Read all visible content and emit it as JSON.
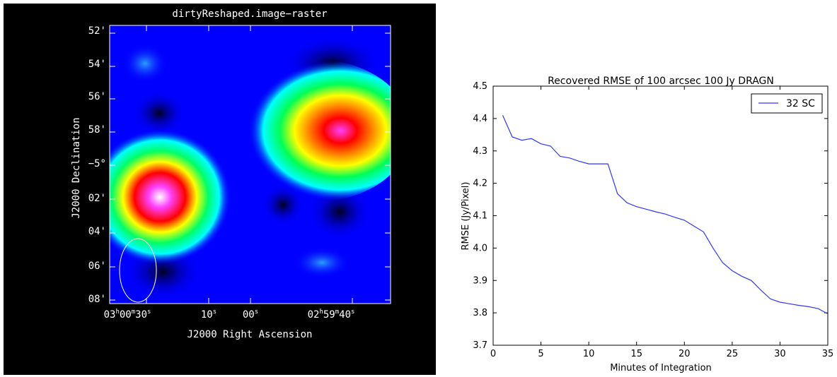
{
  "left_panel": {
    "title": "dirtyReshaped.image−raster",
    "xlabel": "J2000 Right Ascension",
    "ylabel": "J2000 Declination",
    "dec_ticks": [
      "52'",
      "54'",
      "56'",
      "58'",
      "−5°",
      "02'",
      "04'",
      "06'",
      "08'"
    ],
    "ra_ticks": [
      {
        "main": "03",
        "h": "h",
        "mid": "00",
        "m": "m",
        "sec": "30",
        "s": "s"
      },
      {
        "main": "",
        "h": "",
        "mid": "",
        "m": "",
        "sec": "10",
        "s": "s"
      },
      {
        "main": "",
        "h": "",
        "mid": "",
        "m": "",
        "sec": "00",
        "s": "s"
      },
      {
        "main": "02",
        "h": "h",
        "mid": "59",
        "m": "m",
        "sec": "40",
        "s": "s"
      }
    ],
    "colors": {
      "background": "#000000",
      "field": "#0000ff",
      "axis": "#ffffff"
    }
  },
  "chart_data": {
    "type": "line",
    "title": "Recovered RMSE of 100 arcsec 100 Jy DRAGN",
    "xlabel": "Minutes of Integration",
    "ylabel": "RMSE (Jy/Pixel)",
    "xlim": [
      0,
      35
    ],
    "ylim": [
      3.7,
      4.5
    ],
    "xticks": [
      "0",
      "5",
      "10",
      "15",
      "20",
      "25",
      "30",
      "35"
    ],
    "yticks": [
      "3.7",
      "3.8",
      "3.9",
      "4.0",
      "4.1",
      "4.2",
      "4.3",
      "4.4",
      "4.5"
    ],
    "legend_position": "top-right",
    "series": [
      {
        "name": "32 SC",
        "color": "#3333ff",
        "x": [
          1,
          2,
          3,
          4,
          5,
          6,
          7,
          8,
          9,
          10,
          11,
          12,
          13,
          14,
          15,
          16,
          17,
          18,
          19,
          20,
          21,
          22,
          23,
          24,
          25,
          26,
          27,
          28,
          29,
          30,
          31,
          32,
          33,
          34,
          35
        ],
        "y": [
          4.41,
          4.343,
          4.333,
          4.338,
          4.322,
          4.315,
          4.283,
          4.278,
          4.268,
          4.26,
          4.26,
          4.26,
          4.168,
          4.14,
          4.128,
          4.12,
          4.112,
          4.105,
          4.095,
          4.086,
          4.068,
          4.05,
          4.0,
          3.955,
          3.93,
          3.913,
          3.9,
          3.87,
          3.843,
          3.833,
          3.828,
          3.823,
          3.819,
          3.813,
          3.797
        ]
      }
    ]
  }
}
